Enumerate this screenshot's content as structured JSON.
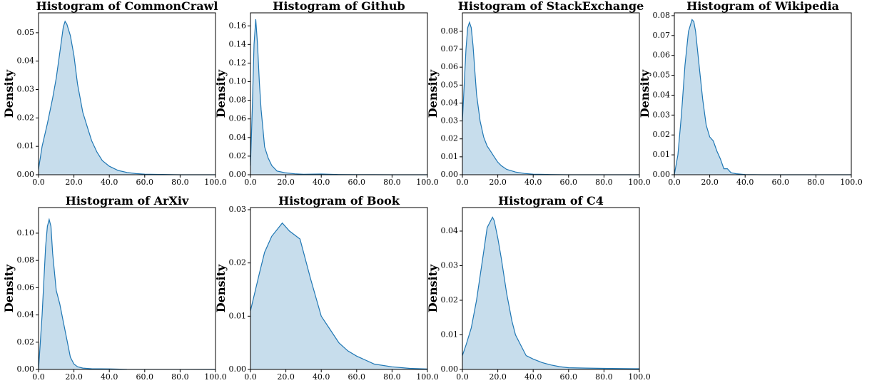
{
  "chart_data": [
    {
      "type": "area",
      "title": "Histogram of CommonCrawl",
      "ylabel": "Density",
      "color": "#1f77b4",
      "x": [
        0,
        2,
        5,
        8,
        10,
        12,
        14,
        15,
        16,
        18,
        20,
        22,
        25,
        28,
        30,
        33,
        36,
        40,
        45,
        50,
        55,
        60,
        70,
        80,
        90,
        100
      ],
      "values": [
        0.002,
        0.01,
        0.018,
        0.027,
        0.034,
        0.043,
        0.052,
        0.054,
        0.053,
        0.049,
        0.042,
        0.032,
        0.022,
        0.016,
        0.012,
        0.008,
        0.005,
        0.003,
        0.0015,
        0.0008,
        0.0004,
        0.0002,
        0.0001,
        0,
        0,
        0
      ],
      "xlim": [
        0,
        100
      ],
      "ylim": [
        0,
        0.057
      ],
      "xticks": [
        {
          "value": 0,
          "label": "0.0"
        },
        {
          "value": 20,
          "label": "20.0"
        },
        {
          "value": 40,
          "label": "40.0"
        },
        {
          "value": 60,
          "label": "60.0"
        },
        {
          "value": 80,
          "label": "80.0"
        },
        {
          "value": 100,
          "label": "100.0"
        }
      ],
      "yticks": [
        {
          "value": 0,
          "label": "0.00"
        },
        {
          "value": 0.01,
          "label": "0.01"
        },
        {
          "value": 0.02,
          "label": "0.02"
        },
        {
          "value": 0.03,
          "label": "0.03"
        },
        {
          "value": 0.04,
          "label": "0.04"
        },
        {
          "value": 0.05,
          "label": "0.05"
        }
      ]
    },
    {
      "type": "area",
      "title": "Histogram of Github",
      "ylabel": "Density",
      "color": "#1f77b4",
      "x": [
        0,
        1,
        2,
        3,
        4,
        5,
        6,
        7,
        8,
        10,
        12,
        15,
        20,
        25,
        30,
        40,
        50,
        60,
        70,
        80,
        100
      ],
      "values": [
        0.01,
        0.07,
        0.14,
        0.167,
        0.14,
        0.1,
        0.07,
        0.05,
        0.03,
        0.018,
        0.01,
        0.004,
        0.002,
        0.001,
        0.0005,
        0.0008,
        0.0002,
        0.0001,
        0.0001,
        0,
        0
      ],
      "xlim": [
        0,
        100
      ],
      "ylim": [
        0,
        0.174
      ],
      "xticks": [
        {
          "value": 0,
          "label": "0.0"
        },
        {
          "value": 20,
          "label": "20.0"
        },
        {
          "value": 40,
          "label": "40.0"
        },
        {
          "value": 60,
          "label": "60.0"
        },
        {
          "value": 80,
          "label": "80.0"
        },
        {
          "value": 100,
          "label": "100.0"
        }
      ],
      "yticks": [
        {
          "value": 0,
          "label": "0.00"
        },
        {
          "value": 0.02,
          "label": "0.02"
        },
        {
          "value": 0.04,
          "label": "0.04"
        },
        {
          "value": 0.06,
          "label": "0.06"
        },
        {
          "value": 0.08,
          "label": "0.08"
        },
        {
          "value": 0.1,
          "label": "0.10"
        },
        {
          "value": 0.12,
          "label": "0.12"
        },
        {
          "value": 0.14,
          "label": "0.14"
        },
        {
          "value": 0.16,
          "label": "0.16"
        }
      ]
    },
    {
      "type": "area",
      "title": "Histogram of StackExchange",
      "ylabel": "Density",
      "color": "#1f77b4",
      "x": [
        0,
        1,
        2,
        3,
        4,
        5,
        6,
        7,
        8,
        10,
        12,
        14,
        16,
        18,
        20,
        22,
        25,
        30,
        35,
        40,
        50,
        60,
        100
      ],
      "values": [
        0.03,
        0.05,
        0.07,
        0.082,
        0.085,
        0.082,
        0.072,
        0.058,
        0.045,
        0.03,
        0.021,
        0.016,
        0.013,
        0.01,
        0.007,
        0.005,
        0.003,
        0.0015,
        0.0007,
        0.0003,
        0.0001,
        0,
        0
      ],
      "xlim": [
        0,
        100
      ],
      "ylim": [
        0,
        0.0903
      ],
      "xticks": [
        {
          "value": 0,
          "label": "0.0"
        },
        {
          "value": 20,
          "label": "20.0"
        },
        {
          "value": 40,
          "label": "40.0"
        },
        {
          "value": 60,
          "label": "60.0"
        },
        {
          "value": 80,
          "label": "80.0"
        },
        {
          "value": 100,
          "label": "100.0"
        }
      ],
      "yticks": [
        {
          "value": 0,
          "label": "0.00"
        },
        {
          "value": 0.01,
          "label": "0.01"
        },
        {
          "value": 0.02,
          "label": "0.02"
        },
        {
          "value": 0.03,
          "label": "0.03"
        },
        {
          "value": 0.04,
          "label": "0.04"
        },
        {
          "value": 0.05,
          "label": "0.05"
        },
        {
          "value": 0.06,
          "label": "0.06"
        },
        {
          "value": 0.07,
          "label": "0.07"
        },
        {
          "value": 0.08,
          "label": "0.08"
        }
      ]
    },
    {
      "type": "area",
      "title": "Histogram of Wikipedia",
      "ylabel": "Density",
      "color": "#1f77b4",
      "x": [
        0,
        2,
        4,
        6,
        8,
        10,
        11,
        12,
        14,
        16,
        18,
        20,
        22,
        24,
        26,
        28,
        30,
        32,
        35,
        40,
        50,
        100
      ],
      "values": [
        0,
        0.01,
        0.03,
        0.055,
        0.072,
        0.078,
        0.077,
        0.072,
        0.055,
        0.038,
        0.025,
        0.019,
        0.017,
        0.012,
        0.008,
        0.003,
        0.003,
        0.001,
        0.0005,
        0.0001,
        0,
        0
      ],
      "xlim": [
        0,
        100
      ],
      "ylim": [
        0,
        0.0814
      ],
      "xticks": [
        {
          "value": 0,
          "label": "0.0"
        },
        {
          "value": 20,
          "label": "20.0"
        },
        {
          "value": 40,
          "label": "40.0"
        },
        {
          "value": 60,
          "label": "60.0"
        },
        {
          "value": 80,
          "label": "80.0"
        },
        {
          "value": 100,
          "label": "100.0"
        }
      ],
      "yticks": [
        {
          "value": 0,
          "label": "0.00"
        },
        {
          "value": 0.01,
          "label": "0.01"
        },
        {
          "value": 0.02,
          "label": "0.02"
        },
        {
          "value": 0.03,
          "label": "0.03"
        },
        {
          "value": 0.04,
          "label": "0.04"
        },
        {
          "value": 0.05,
          "label": "0.05"
        },
        {
          "value": 0.06,
          "label": "0.06"
        },
        {
          "value": 0.07,
          "label": "0.07"
        },
        {
          "value": 0.08,
          "label": "0.08"
        }
      ]
    },
    {
      "type": "area",
      "title": "Histogram of ArXiv",
      "ylabel": "Density",
      "color": "#1f77b4",
      "x": [
        0,
        2,
        4,
        5,
        6,
        7,
        8,
        10,
        12,
        14,
        16,
        18,
        20,
        22,
        25,
        30,
        40,
        50,
        100
      ],
      "values": [
        0,
        0.04,
        0.09,
        0.105,
        0.11,
        0.105,
        0.085,
        0.058,
        0.048,
        0.035,
        0.022,
        0.009,
        0.004,
        0.002,
        0.001,
        0.0005,
        0.0004,
        0.0001,
        0
      ],
      "xlim": [
        0,
        100
      ],
      "ylim": [
        0,
        0.1188
      ],
      "xticks": [
        {
          "value": 0,
          "label": "0.0"
        },
        {
          "value": 20,
          "label": "20.0"
        },
        {
          "value": 40,
          "label": "40.0"
        },
        {
          "value": 60,
          "label": "60.0"
        },
        {
          "value": 80,
          "label": "80.0"
        },
        {
          "value": 100,
          "label": "100.0"
        }
      ],
      "yticks": [
        {
          "value": 0,
          "label": "0.00"
        },
        {
          "value": 0.02,
          "label": "0.02"
        },
        {
          "value": 0.04,
          "label": "0.04"
        },
        {
          "value": 0.06,
          "label": "0.06"
        },
        {
          "value": 0.08,
          "label": "0.08"
        },
        {
          "value": 0.1,
          "label": "0.10"
        }
      ]
    },
    {
      "type": "area",
      "title": "Histogram of Book",
      "ylabel": "Density",
      "color": "#1f77b4",
      "x": [
        0,
        5,
        8,
        12,
        18,
        22,
        28,
        34,
        40,
        45,
        50,
        55,
        60,
        70,
        80,
        90,
        100
      ],
      "values": [
        0.011,
        0.018,
        0.022,
        0.025,
        0.0275,
        0.026,
        0.0245,
        0.017,
        0.01,
        0.0075,
        0.005,
        0.0035,
        0.0025,
        0.001,
        0.0005,
        0.0002,
        0.0001
      ],
      "xlim": [
        0,
        100
      ],
      "ylim": [
        0,
        0.0304
      ],
      "xticks": [
        {
          "value": 0,
          "label": "0.0"
        },
        {
          "value": 20,
          "label": "20.0"
        },
        {
          "value": 40,
          "label": "40.0"
        },
        {
          "value": 60,
          "label": "60.0"
        },
        {
          "value": 80,
          "label": "80.0"
        },
        {
          "value": 100,
          "label": "100.0"
        }
      ],
      "yticks": [
        {
          "value": 0,
          "label": "0.00"
        },
        {
          "value": 0.01,
          "label": "0.01"
        },
        {
          "value": 0.02,
          "label": "0.02"
        },
        {
          "value": 0.03,
          "label": "0.03"
        }
      ]
    },
    {
      "type": "area",
      "title": "Histogram of C4",
      "ylabel": "Density",
      "color": "#1f77b4",
      "x": [
        0,
        2,
        5,
        8,
        10,
        12,
        14,
        16,
        17,
        18,
        20,
        22,
        25,
        28,
        30,
        33,
        36,
        40,
        45,
        50,
        55,
        60,
        70,
        80,
        100
      ],
      "values": [
        0.004,
        0.007,
        0.012,
        0.02,
        0.027,
        0.034,
        0.041,
        0.043,
        0.044,
        0.043,
        0.038,
        0.032,
        0.022,
        0.014,
        0.01,
        0.007,
        0.004,
        0.003,
        0.002,
        0.0013,
        0.0008,
        0.0005,
        0.0004,
        0.0003,
        0.0002
      ],
      "xlim": [
        0,
        100
      ],
      "ylim": [
        0,
        0.0468
      ],
      "xticks": [
        {
          "value": 0,
          "label": "0.0"
        },
        {
          "value": 20,
          "label": "20.0"
        },
        {
          "value": 40,
          "label": "40.0"
        },
        {
          "value": 60,
          "label": "60.0"
        },
        {
          "value": 80,
          "label": "80.0"
        },
        {
          "value": 100,
          "label": "100.0"
        }
      ],
      "yticks": [
        {
          "value": 0,
          "label": "0.00"
        },
        {
          "value": 0.01,
          "label": "0.01"
        },
        {
          "value": 0.02,
          "label": "0.02"
        },
        {
          "value": 0.03,
          "label": "0.03"
        },
        {
          "value": 0.04,
          "label": "0.04"
        }
      ]
    }
  ]
}
